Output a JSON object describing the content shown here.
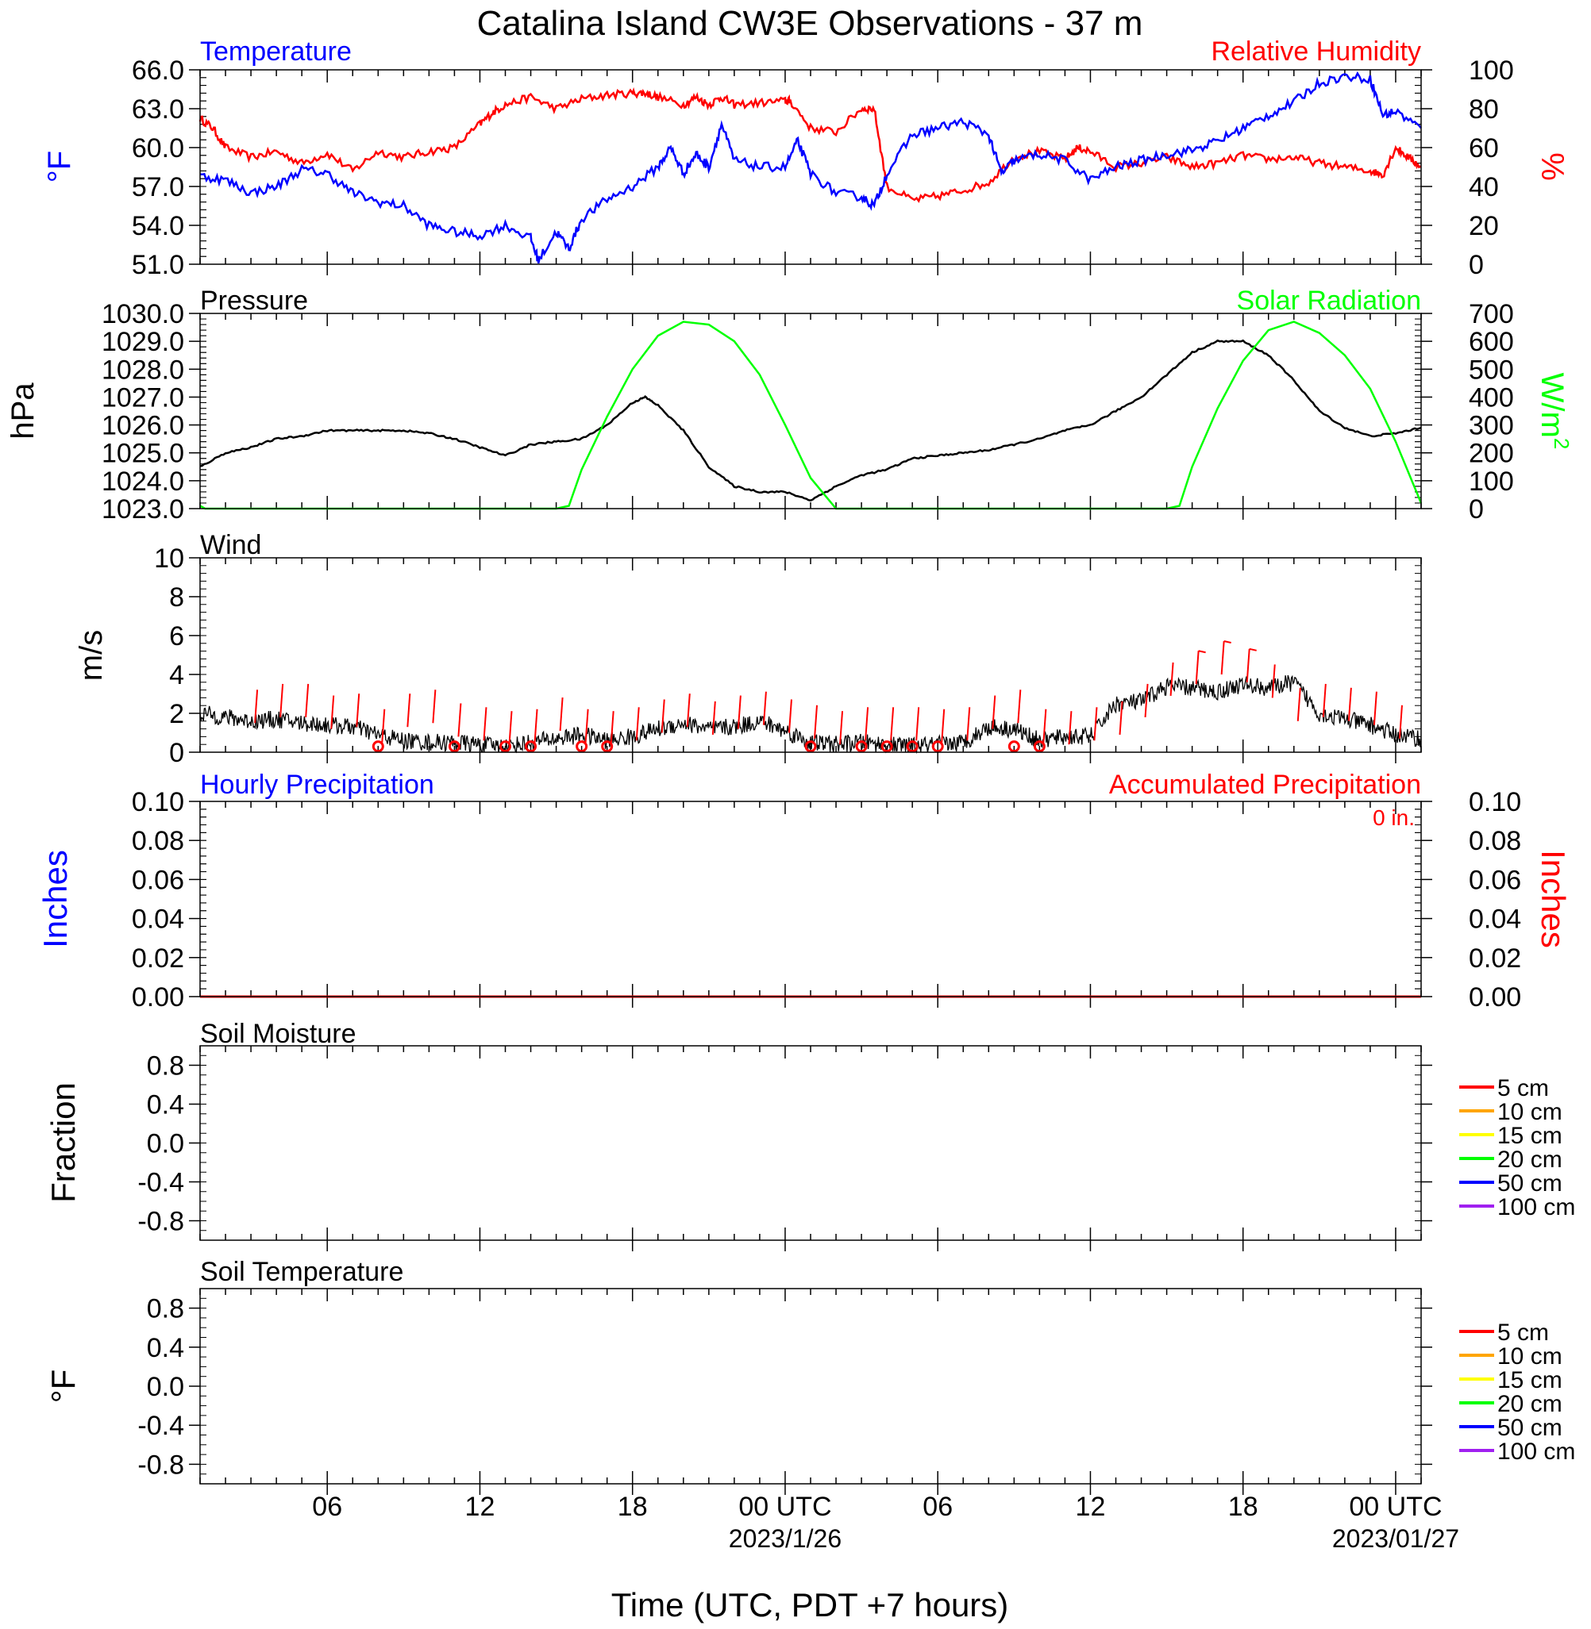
{
  "title": "Catalina Island CW3E Observations - 37 m",
  "x_axis": {
    "label": "Time (UTC, PDT +7 hours)",
    "ticks": [
      {
        "hour": 6,
        "label": "06"
      },
      {
        "hour": 12,
        "label": "12"
      },
      {
        "hour": 18,
        "label": "18"
      },
      {
        "hour": 24,
        "label": "00 UTC"
      },
      {
        "hour": 30,
        "label": "06"
      },
      {
        "hour": 36,
        "label": "12"
      },
      {
        "hour": 42,
        "label": "18"
      },
      {
        "hour": 48,
        "label": "00 UTC"
      }
    ],
    "dates": [
      {
        "hour": 24,
        "label": "2023/1/26"
      },
      {
        "hour": 48,
        "label": "2023/01/27"
      }
    ],
    "range_hours": [
      1,
      49
    ]
  },
  "panels": {
    "temp_rh": {
      "left_title": "Temperature",
      "right_title": "Relative Humidity",
      "left_unit": "°F",
      "right_unit": "%",
      "left_ticks": [
        "66.0",
        "63.0",
        "60.0",
        "57.0",
        "54.0",
        "51.0"
      ],
      "right_ticks": [
        "100",
        "80",
        "60",
        "40",
        "20",
        "0"
      ]
    },
    "pressure_solar": {
      "left_title": "Pressure",
      "right_title": "Solar Radiation",
      "left_unit": "hPa",
      "right_unit": "W/m",
      "right_unit_sup": "2",
      "left_ticks": [
        "1030.0",
        "1029.0",
        "1028.0",
        "1027.0",
        "1026.0",
        "1025.0",
        "1024.0",
        "1023.0"
      ],
      "right_ticks": [
        "700",
        "600",
        "500",
        "400",
        "300",
        "200",
        "100",
        "0"
      ]
    },
    "wind": {
      "title": "Wind",
      "unit": "m/s",
      "ticks": [
        "10",
        "8",
        "6",
        "4",
        "2",
        "0"
      ]
    },
    "precip": {
      "left_title": "Hourly Precipitation",
      "right_title": "Accumulated Precipitation",
      "accum_text": "0 in.",
      "left_unit": "Inches",
      "right_unit": "Inches",
      "ticks": [
        "0.10",
        "0.08",
        "0.06",
        "0.04",
        "0.02",
        "0.00"
      ]
    },
    "soil_moisture": {
      "title": "Soil Moisture",
      "unit": "Fraction",
      "ticks": [
        "0.8",
        "0.4",
        "0.0",
        "-0.4",
        "-0.8"
      ]
    },
    "soil_temp": {
      "title": "Soil Temperature",
      "unit": "°F",
      "ticks": [
        "0.8",
        "0.4",
        "0.0",
        "-0.4",
        "-0.8"
      ]
    }
  },
  "soil_legend": [
    {
      "label": "5 cm",
      "color": "#ff0000"
    },
    {
      "label": "10 cm",
      "color": "#ffa500"
    },
    {
      "label": "15 cm",
      "color": "#ffff00"
    },
    {
      "label": "20 cm",
      "color": "#00ff00"
    },
    {
      "label": "50 cm",
      "color": "#0000ff"
    },
    {
      "label": "100 cm",
      "color": "#a020f0"
    }
  ],
  "colors": {
    "temperature": "#0000ff",
    "humidity": "#ff0000",
    "pressure": "#000000",
    "solar": "#00ff00",
    "wind_speed": "#000000",
    "wind_barb": "#ff0000",
    "precip": "#ff0000"
  },
  "chart_data": [
    {
      "type": "line",
      "title": "Temperature / Relative Humidity",
      "xlabel": "Time (UTC, PDT +7 hours)",
      "ylabel": "°F",
      "y2label": "%",
      "ylim": [
        51,
        66
      ],
      "y2lim": [
        0,
        100
      ],
      "series": [
        {
          "name": "Temperature",
          "axis": "left",
          "x": [
            1,
            2,
            3,
            4,
            5,
            6,
            7,
            8,
            9,
            10,
            11,
            12,
            13,
            14,
            14.3,
            15,
            15.5,
            16,
            17,
            18,
            19,
            19.5,
            20,
            20.5,
            21,
            21.5,
            22,
            23,
            24,
            24.5,
            25,
            26,
            27,
            27.5,
            28,
            29,
            30,
            31,
            32,
            32.5,
            33,
            34,
            35,
            36,
            37,
            38,
            39,
            40,
            41,
            42,
            43,
            44,
            45,
            46,
            47,
            47.5,
            48,
            49
          ],
          "y": [
            57.8,
            57.5,
            56.5,
            57.0,
            58.3,
            58.0,
            56.5,
            55.8,
            55.5,
            54.0,
            53.5,
            53.2,
            54.0,
            53.0,
            51.3,
            53.5,
            52.2,
            54.5,
            56.0,
            57.0,
            58.5,
            60.0,
            58.0,
            59.5,
            58.5,
            61.8,
            59.0,
            58.5,
            58.5,
            60.5,
            58.0,
            56.5,
            56.2,
            55.5,
            58.0,
            61.0,
            61.5,
            62.0,
            61.0,
            58.0,
            59.0,
            59.5,
            59.0,
            57.5,
            58.5,
            59.0,
            59.5,
            59.8,
            60.5,
            61.5,
            62.5,
            63.5,
            65.0,
            65.5,
            65.3,
            62.5,
            62.8,
            61.5
          ]
        },
        {
          "name": "Relative Humidity",
          "axis": "right",
          "x": [
            1,
            1.5,
            2,
            3,
            4,
            5,
            6,
            7,
            8,
            9,
            10,
            11,
            12,
            12.5,
            13,
            14,
            15,
            16,
            17,
            18,
            18.5,
            19,
            20,
            20.5,
            21,
            21.5,
            22,
            23,
            24,
            24.2,
            25,
            26,
            27,
            27.5,
            28,
            29,
            30,
            31,
            32,
            33,
            34,
            35,
            35.5,
            36,
            37,
            38,
            39,
            40,
            41,
            42,
            43,
            44,
            45,
            46,
            47,
            47.5,
            48,
            48.5,
            49
          ],
          "y": [
            75,
            70,
            60,
            55,
            58,
            52,
            57,
            48,
            58,
            55,
            58,
            60,
            72,
            78,
            82,
            86,
            80,
            85,
            87,
            88,
            88,
            86,
            82,
            86,
            82,
            86,
            82,
            83,
            84,
            84,
            70,
            68,
            80,
            80,
            40,
            33,
            35,
            38,
            42,
            55,
            58,
            54,
            60,
            58,
            50,
            52,
            55,
            50,
            52,
            56,
            54,
            55,
            52,
            50,
            48,
            46,
            60,
            55,
            50
          ]
        }
      ]
    },
    {
      "type": "line",
      "title": "Pressure / Solar Radiation",
      "ylabel": "hPa",
      "y2label": "W/m2",
      "ylim": [
        1023,
        1030
      ],
      "y2lim": [
        0,
        700
      ],
      "series": [
        {
          "name": "Pressure",
          "axis": "left",
          "x": [
            1,
            2,
            3,
            4,
            5,
            6,
            7,
            8,
            9,
            10,
            11,
            12,
            13,
            14,
            15,
            16,
            17,
            18,
            18.5,
            19,
            20,
            21,
            22,
            23,
            24,
            25,
            26,
            27,
            28,
            29,
            30,
            31,
            32,
            33,
            34,
            35,
            36,
            37,
            38,
            39,
            40,
            41,
            42,
            43,
            44,
            45,
            46,
            47,
            48,
            49
          ],
          "y": [
            1024.5,
            1025.0,
            1025.2,
            1025.5,
            1025.6,
            1025.8,
            1025.8,
            1025.8,
            1025.8,
            1025.7,
            1025.5,
            1025.2,
            1024.9,
            1025.3,
            1025.4,
            1025.5,
            1026.0,
            1026.8,
            1027.0,
            1026.7,
            1025.8,
            1024.5,
            1023.8,
            1023.6,
            1023.6,
            1023.3,
            1023.8,
            1024.2,
            1024.4,
            1024.8,
            1024.9,
            1025.0,
            1025.1,
            1025.3,
            1025.5,
            1025.8,
            1026.0,
            1026.5,
            1027.0,
            1027.8,
            1028.6,
            1029.0,
            1029.0,
            1028.5,
            1027.6,
            1026.5,
            1025.9,
            1025.6,
            1025.7,
            1025.9
          ]
        },
        {
          "name": "Solar Radiation",
          "axis": "right",
          "x": [
            1,
            1.2,
            15,
            15.5,
            16,
            17,
            18,
            19,
            20,
            21,
            22,
            23,
            24,
            25,
            26,
            39,
            39.5,
            40,
            41,
            42,
            43,
            44,
            45,
            46,
            47,
            48,
            49
          ],
          "y": [
            10,
            0,
            0,
            10,
            140,
            330,
            500,
            620,
            670,
            660,
            600,
            480,
            300,
            110,
            0,
            0,
            10,
            150,
            360,
            530,
            640,
            670,
            630,
            550,
            430,
            240,
            20
          ]
        }
      ]
    },
    {
      "type": "line",
      "title": "Wind",
      "ylabel": "m/s",
      "ylim": [
        0,
        10
      ],
      "series": [
        {
          "name": "Wind",
          "x": [
            1,
            2,
            3,
            4,
            5,
            6,
            7,
            8,
            9,
            10,
            11,
            12,
            13,
            14,
            15,
            16,
            17,
            18,
            19,
            20,
            21,
            22,
            23,
            24,
            25,
            26,
            27,
            28,
            29,
            30,
            31,
            32,
            33,
            34,
            35,
            36,
            37,
            38,
            39,
            40,
            41,
            42,
            43,
            44,
            45,
            46,
            47,
            48,
            49
          ],
          "y": [
            2.0,
            1.8,
            1.6,
            1.7,
            1.5,
            1.4,
            1.3,
            0.9,
            0.6,
            0.5,
            0.5,
            0.4,
            0.3,
            0.5,
            0.7,
            0.9,
            0.6,
            0.8,
            1.2,
            1.5,
            1.2,
            1.3,
            1.6,
            1.1,
            0.5,
            0.4,
            0.5,
            0.4,
            0.3,
            0.4,
            0.5,
            1.3,
            1.2,
            0.6,
            0.8,
            0.8,
            2.5,
            2.6,
            3.4,
            3.3,
            3.1,
            3.5,
            3.3,
            3.6,
            2.0,
            1.7,
            1.4,
            0.9,
            0.7
          ]
        }
      ],
      "barbs": {
        "x": [
          3,
          4,
          5,
          6,
          7,
          8,
          9,
          10,
          11,
          12,
          13,
          14,
          15,
          16,
          17,
          18,
          19,
          20,
          21,
          22,
          23,
          24,
          25,
          26,
          27,
          28,
          29,
          30,
          31,
          32,
          33,
          34,
          35,
          36,
          37,
          38,
          39,
          40,
          41,
          42,
          43,
          44,
          45,
          46,
          47,
          48
        ],
        "y": [
          1.5,
          1.8,
          1.8,
          1.2,
          1.3,
          0.5,
          1.3,
          1.5,
          0.8,
          0.6,
          0.4,
          0.5,
          1.1,
          0.5,
          0.4,
          0.6,
          1.0,
          1.3,
          0.9,
          1.2,
          1.4,
          1.0,
          0.7,
          0.4,
          0.6,
          0.6,
          0.6,
          0.5,
          0.6,
          1.2,
          1.5,
          0.5,
          0.4,
          0.6,
          0.9,
          1.8,
          2.9,
          3.5,
          4.0,
          3.6,
          2.8,
          1.6,
          1.8,
          1.6,
          1.4,
          0.7
        ]
      },
      "calm_x": [
        8,
        11,
        13,
        14,
        16,
        17,
        25,
        27,
        28,
        29,
        30,
        33,
        34
      ]
    },
    {
      "type": "line",
      "title": "Hourly Precipitation / Accumulated Precipitation",
      "ylabel": "Inches",
      "ylim": [
        0,
        0.1
      ],
      "series": [
        {
          "name": "Accumulated Precipitation",
          "x": [
            1,
            49
          ],
          "y": [
            0,
            0
          ]
        }
      ]
    },
    {
      "type": "line",
      "title": "Soil Moisture",
      "ylabel": "Fraction",
      "ylim": [
        -1,
        1
      ],
      "series": []
    },
    {
      "type": "line",
      "title": "Soil Temperature",
      "ylabel": "°F",
      "ylim": [
        -1,
        1
      ],
      "series": []
    }
  ]
}
